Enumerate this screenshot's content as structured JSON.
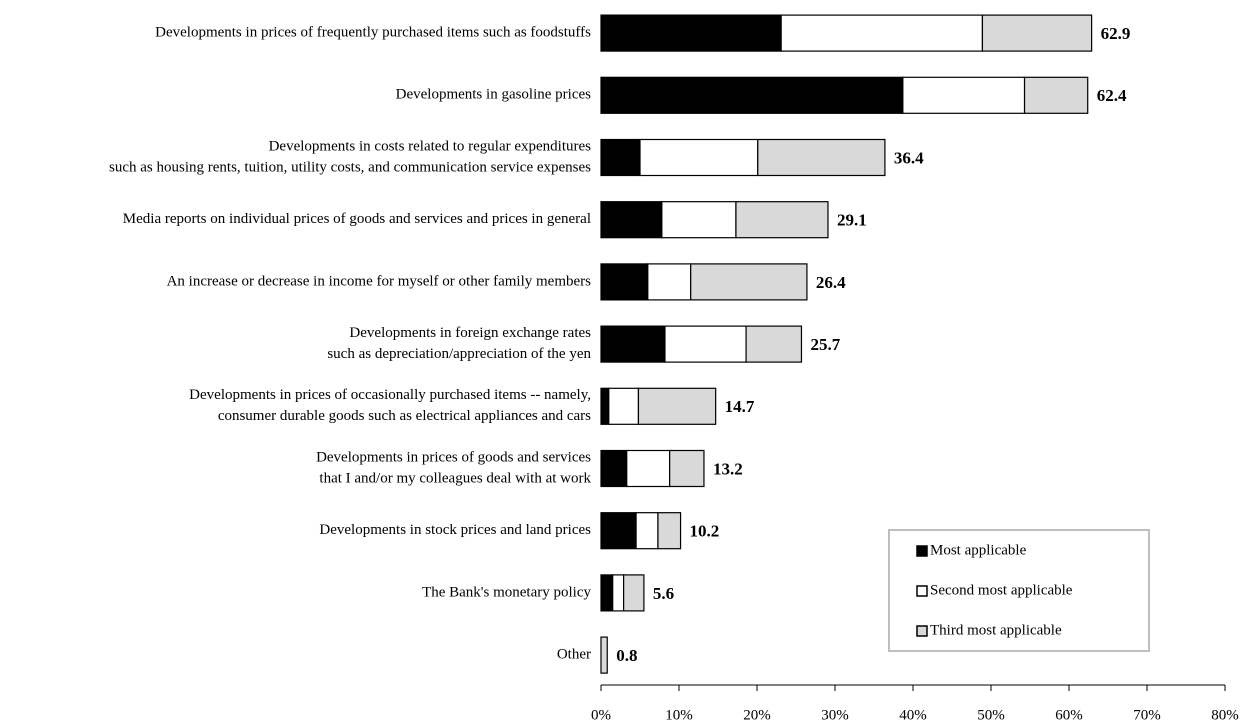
{
  "chart_data": {
    "type": "stacked-bar",
    "orientation": "horizontal",
    "categories": [
      [
        "Developments in prices of frequently purchased items such as foodstuffs"
      ],
      [
        "Developments in gasoline prices"
      ],
      [
        "Developments in costs related to regular expenditures",
        "such as housing rents, tuition, utility costs, and communication service expenses"
      ],
      [
        "Media reports on individual prices of goods and services and prices in general"
      ],
      [
        "An increase or decrease  in income for myself or other family members"
      ],
      [
        "Developments in foreign exchange rates",
        "such as depreciation/appreciation of the yen"
      ],
      [
        "Developments in prices of occasionally purchased items -- namely,",
        "consumer durable goods such as electrical appliances and cars"
      ],
      [
        "Developments in prices of goods and services",
        "that I and/or my colleagues deal with at work"
      ],
      [
        "Developments in stock prices and land prices"
      ],
      [
        "The Bank's monetary policy"
      ],
      [
        "Other"
      ]
    ],
    "series": [
      {
        "name": "Most applicable",
        "color": "#000000",
        "values": [
          23.1,
          38.7,
          5.0,
          7.8,
          6.0,
          8.2,
          1.0,
          3.3,
          4.5,
          1.5,
          0
        ]
      },
      {
        "name": "Second most applicable",
        "color": "#ffffff",
        "values": [
          25.8,
          15.6,
          15.1,
          9.5,
          5.5,
          10.4,
          3.8,
          5.5,
          2.8,
          1.4,
          0
        ]
      },
      {
        "name": "Third most applicable",
        "color": "#d9d9d9",
        "values": [
          14.0,
          8.1,
          16.3,
          11.8,
          14.9,
          7.1,
          9.9,
          4.4,
          2.9,
          2.6,
          0.8
        ]
      }
    ],
    "totals": [
      62.9,
      62.4,
      36.4,
      29.1,
      26.4,
      25.7,
      14.7,
      13.2,
      10.2,
      5.6,
      0.8
    ],
    "xlim": [
      0,
      80
    ],
    "xticks": [
      {
        "value": 0,
        "label": "0%"
      },
      {
        "value": 10,
        "label": "10%"
      },
      {
        "value": 20,
        "label": "20%"
      },
      {
        "value": 30,
        "label": "30%"
      },
      {
        "value": 40,
        "label": "40%"
      },
      {
        "value": 50,
        "label": "50%"
      },
      {
        "value": 60,
        "label": "60%"
      },
      {
        "value": 70,
        "label": "70%"
      },
      {
        "value": 80,
        "label": "80%"
      }
    ],
    "legend": "lower right"
  }
}
